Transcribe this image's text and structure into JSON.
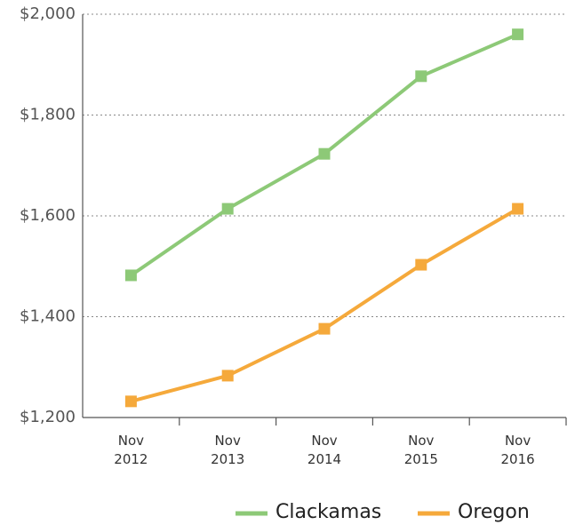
{
  "chart_data": {
    "type": "line",
    "categories": [
      "Nov 2012",
      "Nov 2013",
      "Nov 2014",
      "Nov 2015",
      "Nov 2016"
    ],
    "series": [
      {
        "name": "Clackamas",
        "color": "#8dc977",
        "values": [
          1482,
          1614,
          1723,
          1877,
          1960
        ]
      },
      {
        "name": "Oregon",
        "color": "#f5a93b",
        "values": [
          1232,
          1283,
          1376,
          1503,
          1614
        ]
      }
    ],
    "ylim": [
      1200,
      2000
    ],
    "yticks": [
      {
        "value": 1200,
        "label": "$1,200"
      },
      {
        "value": 1400,
        "label": "$1,400"
      },
      {
        "value": 1600,
        "label": "$1,600"
      },
      {
        "value": 1800,
        "label": "$1,800"
      },
      {
        "value": 2000,
        "label": "$2,000"
      }
    ],
    "grid": true,
    "legend": "bottom"
  }
}
